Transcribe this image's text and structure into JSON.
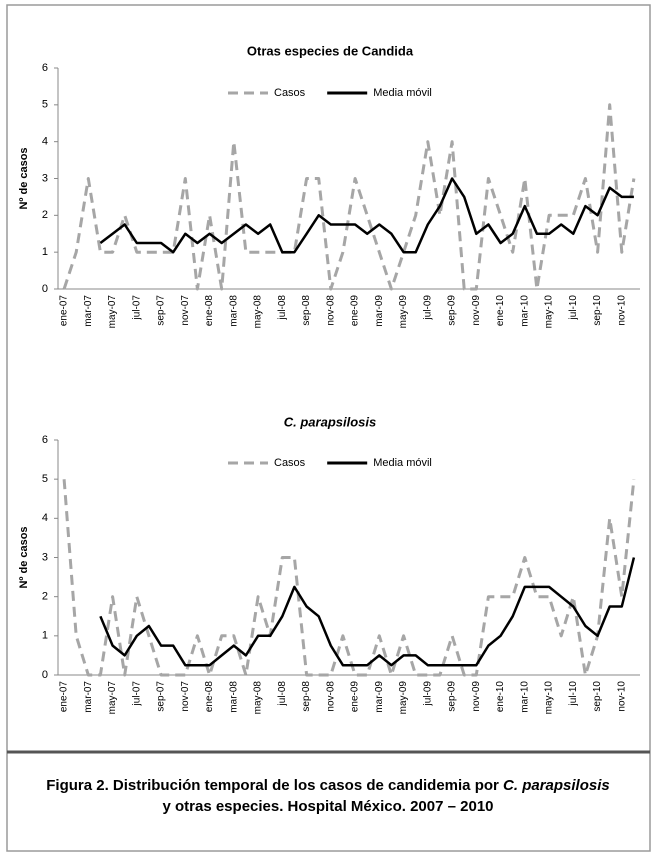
{
  "chart_data": [
    {
      "type": "line",
      "title": "Otras especies de Candida",
      "y_label": "Nº de casos",
      "categories": [
        "ene-07",
        null,
        "mar-07",
        null,
        "may-07",
        null,
        "jul-07",
        null,
        "sep-07",
        null,
        "nov-07",
        null,
        "ene-08",
        null,
        "mar-08",
        null,
        "may-08",
        null,
        "jul-08",
        null,
        "sep-08",
        null,
        "nov-08",
        null,
        "ene-09",
        null,
        "mar-09",
        null,
        "may-09",
        null,
        "jul-09",
        null,
        "sep-09",
        null,
        "nov-09",
        null,
        "ene-10",
        null,
        "mar-10",
        null,
        "may-10",
        null,
        "jul-10",
        null,
        "sep-10",
        null,
        "nov-10",
        null
      ],
      "series": [
        {
          "name": "Casos",
          "color": "#a6a6a6",
          "dashed": true,
          "values": [
            0,
            1,
            3,
            1,
            1,
            2,
            1,
            1,
            1,
            1,
            3,
            0,
            2,
            0,
            4,
            1,
            1,
            1,
            1,
            1,
            3,
            3,
            0,
            1,
            3,
            2,
            1,
            0,
            1,
            2,
            4,
            2,
            4,
            0,
            0,
            3,
            2,
            1,
            3,
            0,
            2,
            2,
            2,
            3,
            1,
            5,
            1,
            3
          ]
        },
        {
          "name": "Media móvil",
          "color": "#000000",
          "dashed": false,
          "values": [
            null,
            null,
            null,
            1.25,
            1.5,
            1.75,
            1.25,
            1.25,
            1.25,
            1,
            1.5,
            1.25,
            1.5,
            1.25,
            1.5,
            1.75,
            1.5,
            1.75,
            1,
            1,
            1.5,
            2,
            1.75,
            1.75,
            1.75,
            1.5,
            1.75,
            1.5,
            1,
            1,
            1.75,
            2.25,
            3,
            2.5,
            1.5,
            1.75,
            1.25,
            1.5,
            2.25,
            1.5,
            1.5,
            1.75,
            1.5,
            2.25,
            2,
            2.75,
            2.5,
            2.5
          ]
        }
      ],
      "ylim": [
        0,
        6
      ],
      "yticks": [
        0,
        1,
        2,
        3,
        4,
        5,
        6
      ]
    },
    {
      "type": "line",
      "title": "C. parapsilosis",
      "y_label": "Nº de casos",
      "categories": [
        "ene-07",
        null,
        "mar-07",
        null,
        "may-07",
        null,
        "jul-07",
        null,
        "sep-07",
        null,
        "nov-07",
        null,
        "ene-08",
        null,
        "mar-08",
        null,
        "may-08",
        null,
        "jul-08",
        null,
        "sep-08",
        null,
        "nov-08",
        null,
        "ene-09",
        null,
        "mar-09",
        null,
        "may-09",
        null,
        "jul-09",
        null,
        "sep-09",
        null,
        "nov-09",
        null,
        "ene-10",
        null,
        "mar-10",
        null,
        "may-10",
        null,
        "jul-10",
        null,
        "sep-10",
        null,
        "nov-10",
        null
      ],
      "series": [
        {
          "name": "Casos",
          "color": "#a6a6a6",
          "dashed": true,
          "values": [
            5,
            1,
            0,
            0,
            2,
            0,
            2,
            1,
            0,
            0,
            0,
            1,
            0,
            1,
            1,
            0,
            2,
            1,
            3,
            3,
            0,
            0,
            0,
            1,
            0,
            0,
            1,
            0,
            1,
            0,
            0,
            0,
            1,
            0,
            0,
            2,
            2,
            2,
            3,
            2,
            2,
            1,
            2,
            0,
            1,
            4,
            2,
            5
          ]
        },
        {
          "name": "Media móvil",
          "color": "#000000",
          "dashed": false,
          "values": [
            null,
            null,
            null,
            1.5,
            0.75,
            0.5,
            1,
            1.25,
            0.75,
            0.75,
            0.25,
            0.25,
            0.25,
            0.5,
            0.75,
            0.5,
            1,
            1,
            1.5,
            2.25,
            1.75,
            1.5,
            0.75,
            0.25,
            0.25,
            0.25,
            0.5,
            0.25,
            0.5,
            0.5,
            0.25,
            0.25,
            0.25,
            0.25,
            0.25,
            0.75,
            1,
            1.5,
            2.25,
            2.25,
            2.25,
            2,
            1.75,
            1.25,
            1,
            1.75,
            1.75,
            3
          ]
        }
      ],
      "ylim": [
        0,
        6
      ],
      "yticks": [
        0,
        1,
        2,
        3,
        4,
        5,
        6
      ]
    }
  ],
  "caption": {
    "line1": "Figura 2. Distribución temporal de los casos de candidemia por ",
    "line1_italic": "C. parapsilosis",
    "line2": "y otras especies. Hospital México. 2007 – 2010"
  }
}
